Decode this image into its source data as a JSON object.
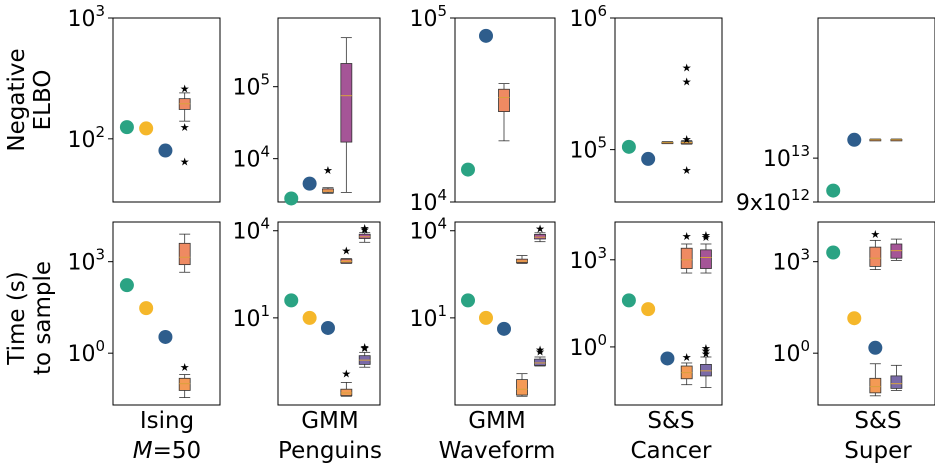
{
  "chart_data": {
    "type": "scatter",
    "title": "",
    "row_labels": [
      {
        "line1": "Negative",
        "line2": "ELBO"
      },
      {
        "line1": "Time (s)",
        "line2": "to sample"
      }
    ],
    "columns": [
      {
        "line1": "Ising",
        "line2_italic": "M",
        "line2_rest": "=50"
      },
      {
        "line1": "GMM",
        "line2": "Penguins"
      },
      {
        "line1": "GMM",
        "line2": "Waveform"
      },
      {
        "line1": "S&S",
        "line2": "Cancer"
      },
      {
        "line1": "S&S",
        "line2": "Super"
      }
    ],
    "colors": {
      "teal": "#2aa383",
      "yellow": "#f5b72a",
      "blue": "#2e5d8c",
      "orange_box": "#ef8a62",
      "orange2_box": "#f49a55",
      "magenta_box": "#a55597",
      "purple_box": "#7a6aa8",
      "median": "#d9a23c"
    },
    "panels": [
      {
        "row": 0,
        "col": 0,
        "scale": "log",
        "ylim": [
          30,
          1000
        ],
        "ticks": [
          {
            "v": 100,
            "label": "10",
            "exp": "2"
          },
          {
            "v": 1000,
            "label": "10",
            "exp": "3"
          }
        ],
        "points": [
          {
            "slot": 0,
            "color": "teal",
            "y": 125
          },
          {
            "slot": 1,
            "color": "yellow",
            "y": 122
          },
          {
            "slot": 2,
            "color": "blue",
            "y": 80
          }
        ],
        "boxes": [
          {
            "slot": 3,
            "color": "orange_box",
            "q1": 175,
            "med": 195,
            "q3": 215,
            "wlo": 140,
            "whi": 240,
            "fliers": [
              260,
              125,
              65
            ]
          }
        ]
      },
      {
        "row": 0,
        "col": 1,
        "scale": "log",
        "ylim": [
          2500,
          900000
        ],
        "ticks": [
          {
            "v": 10000,
            "label": "10",
            "exp": "4"
          },
          {
            "v": 100000,
            "label": "10",
            "exp": "5"
          }
        ],
        "points": [
          {
            "slot": 0,
            "color": "teal",
            "y": 2800
          },
          {
            "slot": 1,
            "color": "blue",
            "y": 4500
          }
        ],
        "boxes": [
          {
            "slot": 2,
            "color": "orange_box",
            "q1": 3400,
            "med": 3550,
            "q3": 3800,
            "wlo": 3300,
            "whi": 3950,
            "fliers": [
              7000
            ]
          },
          {
            "slot": 3,
            "color": "magenta_box",
            "q1": 17000,
            "med": 75000,
            "q3": 210000,
            "wlo": 3400,
            "whi": 480000,
            "fliers": []
          }
        ]
      },
      {
        "row": 0,
        "col": 2,
        "scale": "log",
        "ylim": [
          10000,
          100000
        ],
        "ticks": [
          {
            "v": 10000,
            "label": "10",
            "exp": "4"
          },
          {
            "v": 100000,
            "label": "10",
            "exp": "5"
          }
        ],
        "points": [
          {
            "slot": 0,
            "color": "teal",
            "y": 15000
          },
          {
            "slot": 1,
            "color": "blue",
            "y": 80000
          }
        ],
        "boxes": [
          {
            "slot": 2,
            "color": "orange_box",
            "q1": 31000,
            "med": 37000,
            "q3": 41000,
            "wlo": 21500,
            "whi": 44000,
            "fliers": []
          }
        ]
      },
      {
        "row": 0,
        "col": 3,
        "scale": "log",
        "ylim": [
          40000,
          1000000
        ],
        "ticks": [
          {
            "v": 100000,
            "label": "10",
            "exp": "5"
          },
          {
            "v": 1000000,
            "label": "10",
            "exp": "6"
          }
        ],
        "points": [
          {
            "slot": 0,
            "color": "teal",
            "y": 105000
          },
          {
            "slot": 1,
            "color": "blue",
            "y": 85000
          }
        ],
        "boxes": [
          {
            "slot": 2,
            "color": "orange_box",
            "q1": 112000,
            "med": 113000,
            "q3": 114000,
            "wlo": 111000,
            "whi": 115000,
            "fliers": []
          },
          {
            "slot": 3,
            "color": "orange_box",
            "q1": 111000,
            "med": 113000,
            "q3": 115000,
            "wlo": 110000,
            "whi": 117000,
            "fliers": [
              420000,
              330000,
              120000,
              70000
            ]
          }
        ]
      },
      {
        "row": 0,
        "col": 4,
        "scale": "log",
        "ylim": [
          9000000000000,
          14000000000000
        ],
        "ticks": [
          {
            "v": 9000000000000,
            "label": "9x10",
            "exp": "12"
          },
          {
            "v": 10000000000000,
            "label": "10",
            "exp": "13"
          }
        ],
        "points": [
          {
            "slot": 0,
            "color": "teal",
            "y": 9250000000000
          },
          {
            "slot": 1,
            "color": "blue",
            "y": 10450000000000
          }
        ],
        "boxes": [
          {
            "slot": 2,
            "color": "orange_box",
            "q1": 10440000000000,
            "med": 10450000000000,
            "q3": 10460000000000,
            "wlo": 10430000000000,
            "whi": 10470000000000,
            "fliers": []
          },
          {
            "slot": 3,
            "color": "orange_box",
            "q1": 10440000000000,
            "med": 10450000000000,
            "q3": 10460000000000,
            "wlo": 10430000000000,
            "whi": 10470000000000,
            "fliers": []
          }
        ]
      },
      {
        "row": 1,
        "col": 0,
        "scale": "log",
        "ylim": [
          0.02,
          20000
        ],
        "ticks": [
          {
            "v": 1,
            "label": "10",
            "exp": "0"
          },
          {
            "v": 1000,
            "label": "10",
            "exp": "3"
          }
        ],
        "points": [
          {
            "slot": 0,
            "color": "teal",
            "y": 170
          },
          {
            "slot": 1,
            "color": "yellow",
            "y": 30
          },
          {
            "slot": 2,
            "color": "blue",
            "y": 3.4
          }
        ],
        "boxes": [
          {
            "slot": 3,
            "color": "orange_box",
            "q1": 800,
            "med": 1400,
            "q3": 4000,
            "wlo": 450,
            "whi": 8000,
            "fliers": []
          },
          {
            "slot": 3,
            "color": "orange2_box",
            "q1": 0.06,
            "med": 0.1,
            "q3": 0.15,
            "wlo": 0.035,
            "whi": 0.2,
            "fliers": [
              0.35
            ]
          }
        ]
      },
      {
        "row": 1,
        "col": 1,
        "scale": "log",
        "ylim": [
          0.01,
          20000
        ],
        "ticks": [
          {
            "v": 10,
            "label": "10",
            "exp": "1"
          },
          {
            "v": 10000,
            "label": "10",
            "exp": "4"
          }
        ],
        "points": [
          {
            "slot": 0,
            "color": "teal",
            "y": 40
          },
          {
            "slot": 1,
            "color": "yellow",
            "y": 10
          },
          {
            "slot": 2,
            "color": "blue",
            "y": 4.5
          }
        ],
        "boxes": [
          {
            "slot": 3,
            "color": "orange_box",
            "q1": 780,
            "med": 870,
            "q3": 1050,
            "wlo": 750,
            "whi": 1100,
            "fliers": [
              2100
            ]
          },
          {
            "slot": 4,
            "color": "magenta_box",
            "q1": 5400,
            "med": 6200,
            "q3": 7600,
            "wlo": 4000,
            "whi": 8600,
            "fliers": [
              12500,
              11000
            ]
          },
          {
            "slot": 3,
            "color": "orange2_box",
            "q1": 0.021,
            "med": 0.026,
            "q3": 0.035,
            "wlo": 0.02,
            "whi": 0.06,
            "fliers": [
              0.12
            ]
          },
          {
            "slot": 4,
            "color": "purple_box",
            "q1": 0.25,
            "med": 0.35,
            "q3": 0.5,
            "wlo": 0.2,
            "whi": 0.65,
            "fliers": [
              0.9,
              1.0
            ]
          }
        ]
      },
      {
        "row": 1,
        "col": 2,
        "scale": "log",
        "ylim": [
          0.01,
          20000
        ],
        "ticks": [
          {
            "v": 10,
            "label": "10",
            "exp": "1"
          },
          {
            "v": 10000,
            "label": "10",
            "exp": "4"
          }
        ],
        "points": [
          {
            "slot": 0,
            "color": "teal",
            "y": 40
          },
          {
            "slot": 1,
            "color": "yellow",
            "y": 10
          },
          {
            "slot": 2,
            "color": "blue",
            "y": 4.2
          }
        ],
        "boxes": [
          {
            "slot": 3,
            "color": "orange_box",
            "q1": 800,
            "med": 900,
            "q3": 1050,
            "wlo": 750,
            "whi": 1400,
            "fliers": []
          },
          {
            "slot": 4,
            "color": "magenta_box",
            "q1": 5200,
            "med": 6000,
            "q3": 7500,
            "wlo": 4200,
            "whi": 8500,
            "fliers": [
              12000
            ]
          },
          {
            "slot": 3,
            "color": "orange2_box",
            "q1": 0.022,
            "med": 0.035,
            "q3": 0.075,
            "wlo": 0.02,
            "whi": 0.12,
            "fliers": []
          },
          {
            "slot": 4,
            "color": "purple_box",
            "q1": 0.23,
            "med": 0.28,
            "q3": 0.38,
            "wlo": 0.22,
            "whi": 0.45,
            "fliers": [
              0.7,
              0.82
            ]
          }
        ]
      },
      {
        "row": 1,
        "col": 3,
        "scale": "log",
        "ylim": [
          0.01,
          20000
        ],
        "ticks": [
          {
            "v": 1,
            "label": "10",
            "exp": "0"
          },
          {
            "v": 1000,
            "label": "10",
            "exp": "3"
          }
        ],
        "points": [
          {
            "slot": 0,
            "color": "teal",
            "y": 40
          },
          {
            "slot": 1,
            "color": "yellow",
            "y": 20
          },
          {
            "slot": 2,
            "color": "blue",
            "y": 0.4
          }
        ],
        "boxes": [
          {
            "slot": 3,
            "color": "orange_box",
            "q1": 500,
            "med": 1000,
            "q3": 2500,
            "wlo": 350,
            "whi": 3500,
            "fliers": [
              6500
            ]
          },
          {
            "slot": 4,
            "color": "magenta_box",
            "q1": 500,
            "med": 1200,
            "q3": 2200,
            "wlo": 350,
            "whi": 3500,
            "fliers": [
              6000,
              7000
            ]
          },
          {
            "slot": 3,
            "color": "orange2_box",
            "q1": 0.08,
            "med": 0.13,
            "q3": 0.22,
            "wlo": 0.05,
            "whi": 0.28,
            "fliers": [
              0.45
            ]
          },
          {
            "slot": 4,
            "color": "purple_box",
            "q1": 0.1,
            "med": 0.15,
            "q3": 0.25,
            "wlo": 0.04,
            "whi": 0.45,
            "fliers": [
              0.6,
              0.75,
              0.9
            ]
          }
        ]
      },
      {
        "row": 1,
        "col": 4,
        "scale": "log",
        "ylim": [
          0.02,
          20000
        ],
        "ticks": [
          {
            "v": 1,
            "label": "10",
            "exp": "0"
          },
          {
            "v": 1000,
            "label": "10",
            "exp": "3"
          }
        ],
        "points": [
          {
            "slot": 0,
            "color": "teal",
            "y": 2000
          },
          {
            "slot": 1,
            "color": "yellow",
            "y": 14
          },
          {
            "slot": 2,
            "color": "blue",
            "y": 1.5
          }
        ],
        "boxes": [
          {
            "slot": 2,
            "color": "orange_box",
            "q1": 700,
            "med": 1300,
            "q3": 3000,
            "wlo": 550,
            "whi": 5000,
            "fliers": [
              8000
            ]
          },
          {
            "slot": 3,
            "color": "magenta_box",
            "q1": 1300,
            "med": 2300,
            "q3": 3800,
            "wlo": 1100,
            "whi": 5500,
            "fliers": []
          },
          {
            "slot": 2,
            "color": "orange2_box",
            "q1": 0.05,
            "med": 0.08,
            "q3": 0.15,
            "wlo": 0.04,
            "whi": 0.45,
            "fliers": []
          },
          {
            "slot": 3,
            "color": "purple_box",
            "q1": 0.07,
            "med": 0.1,
            "q3": 0.18,
            "wlo": 0.06,
            "whi": 0.4,
            "fliers": []
          }
        ]
      }
    ]
  }
}
